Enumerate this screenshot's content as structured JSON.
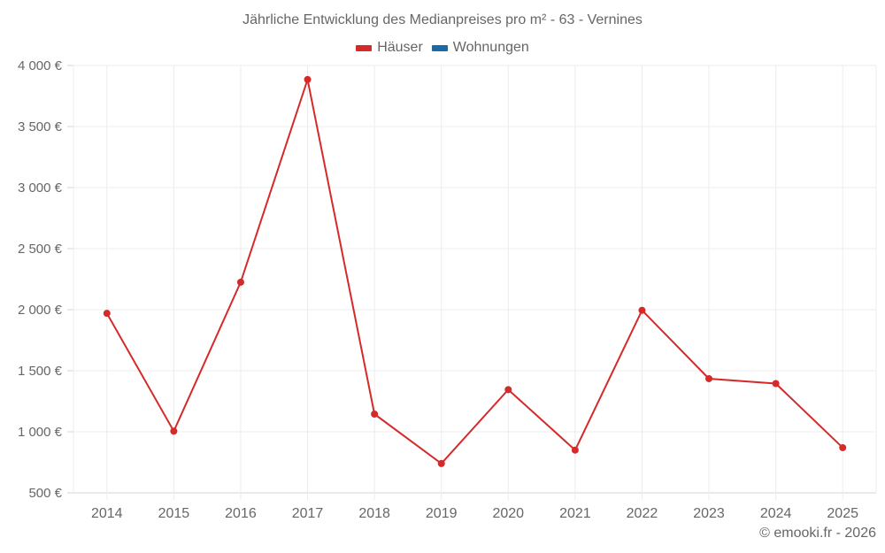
{
  "chart_data": {
    "type": "line",
    "title": "Jährliche Entwicklung des Medianpreises pro m² - 63 - Vernines",
    "xlabel": "",
    "ylabel": "",
    "categories": [
      "2014",
      "2015",
      "2016",
      "2017",
      "2018",
      "2019",
      "2020",
      "2021",
      "2022",
      "2023",
      "2024",
      "2025"
    ],
    "series": [
      {
        "name": "Häuser",
        "color": "#d42a2a",
        "values": [
          1970,
          1005,
          2225,
          3885,
          1145,
          740,
          1345,
          850,
          1995,
          1435,
          1395,
          870
        ]
      },
      {
        "name": "Wohnungen",
        "color": "#1a6aa8",
        "values": []
      }
    ],
    "ylim": [
      500,
      4000
    ],
    "yticks": [
      500,
      1000,
      1500,
      2000,
      2500,
      3000,
      3500,
      4000
    ],
    "ytick_labels": [
      "500 €",
      "1 000 €",
      "1 500 €",
      "2 000 €",
      "2 500 €",
      "3 000 €",
      "3 500 €",
      "4 000 €"
    ],
    "grid": true,
    "legend_position": "top"
  },
  "legend": [
    {
      "label": "Häuser",
      "color": "#d42a2a"
    },
    {
      "label": "Wohnungen",
      "color": "#1a6aa8"
    }
  ],
  "credit": "© emooki.fr - 2026"
}
